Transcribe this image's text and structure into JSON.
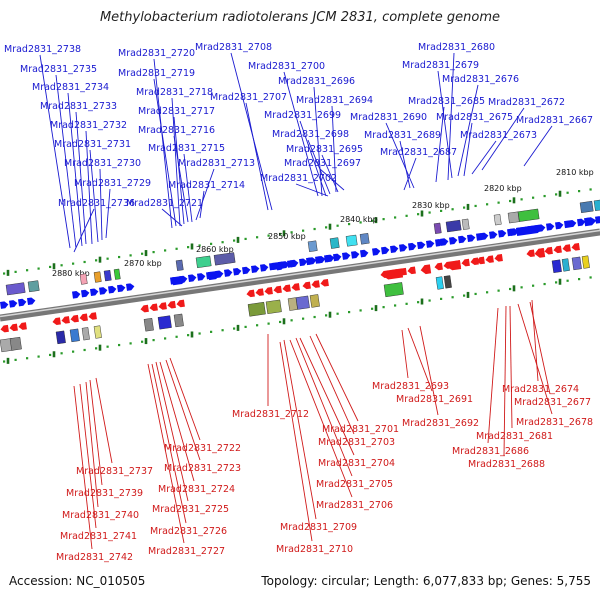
{
  "title": "Methylobacterium radiotolerans JCM 2831, complete genome",
  "accession": "Accession: NC_010505",
  "topology": "Topology: circular; Length: 6,077,833 bp; Genes: 5,755",
  "colors": {
    "forward_label": "#1a1ad0",
    "reverse_label": "#d01a1a",
    "forward_gene": "#0a14f0",
    "reverse_gene": "#f01a1a",
    "backbone": "#777777",
    "tick_minor": "#2a9a2a",
    "tick_major": "#1c6f1c"
  },
  "ticks": [
    "2880 kbp",
    "2870 kbp",
    "2860 kbp",
    "2850 kbp",
    "2840 kbp",
    "2830 kbp",
    "2820 kbp",
    "2810 kbp"
  ],
  "forward_genes": [
    "Mrad2831_2738",
    "Mrad2831_2735",
    "Mrad2831_2734",
    "Mrad2831_2733",
    "Mrad2831_2732",
    "Mrad2831_2731",
    "Mrad2831_2730",
    "Mrad2831_2729",
    "Mrad2831_2736",
    "Mrad2831_2720",
    "Mrad2831_2719",
    "Mrad2831_2718",
    "Mrad2831_2717",
    "Mrad2831_2716",
    "Mrad2831_2715",
    "Mrad2831_2713",
    "Mrad2831_2714",
    "Mrad2831_2721",
    "Mrad2831_2708",
    "Mrad2831_2707",
    "Mrad2831_2700",
    "Mrad2831_2696",
    "Mrad2831_2694",
    "Mrad2831_2699",
    "Mrad2831_2698",
    "Mrad2831_2695",
    "Mrad2831_2697",
    "Mrad2831_2702",
    "Mrad2831_2680",
    "Mrad2831_2679",
    "Mrad2831_2676",
    "Mrad2831_2685",
    "Mrad2831_2690",
    "Mrad2831_2689",
    "Mrad2831_2687",
    "Mrad2831_2672",
    "Mrad2831_2675",
    "Mrad2831_2673",
    "Mrad2831_2667"
  ],
  "reverse_genes": [
    "Mrad2831_2693",
    "Mrad2831_2691",
    "Mrad2831_2692",
    "Mrad2831_2674",
    "Mrad2831_2677",
    "Mrad2831_2678",
    "Mrad2831_2681",
    "Mrad2831_2686",
    "Mrad2831_2688",
    "Mrad2831_2712",
    "Mrad2831_2701",
    "Mrad2831_2703",
    "Mrad2831_2704",
    "Mrad2831_2705",
    "Mrad2831_2706",
    "Mrad2831_2709",
    "Mrad2831_2710",
    "Mrad2831_2722",
    "Mrad2831_2723",
    "Mrad2831_2724",
    "Mrad2831_2725",
    "Mrad2831_2726",
    "Mrad2831_2727",
    "Mrad2831_2737",
    "Mrad2831_2739",
    "Mrad2831_2740",
    "Mrad2831_2741",
    "Mrad2831_2742"
  ]
}
